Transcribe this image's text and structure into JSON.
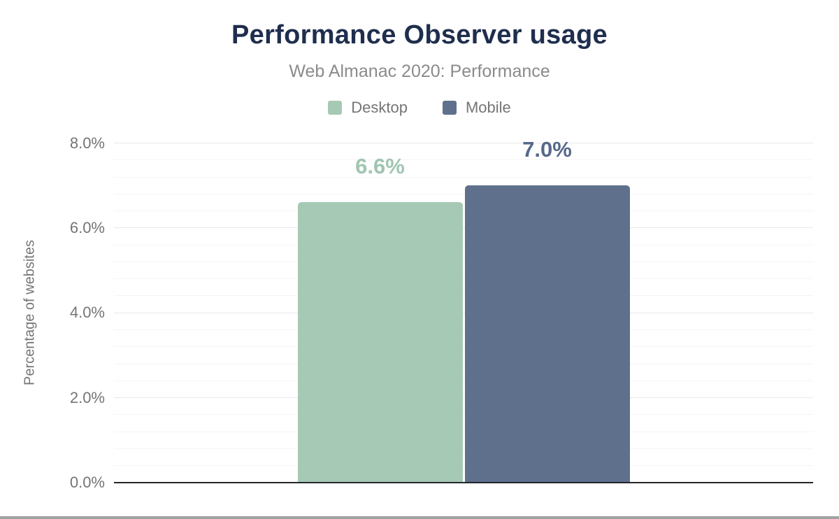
{
  "chart": {
    "title": "Performance Observer usage",
    "subtitle": "Web Almanac 2020: Performance",
    "ylabel": "Percentage of websites"
  },
  "chart_data": {
    "type": "bar",
    "title": "Performance Observer usage",
    "subtitle": "Web Almanac 2020: Performance",
    "categories": [
      "Performance Observer usage"
    ],
    "series": [
      {
        "name": "Desktop",
        "values": [
          6.6
        ],
        "value_label": "6.6%",
        "color": "#a6c9b6",
        "label_color": "#a0c5b1"
      },
      {
        "name": "Mobile",
        "values": [
          7.0
        ],
        "value_label": "7.0%",
        "color": "#5e708c",
        "label_color": "#57698a"
      }
    ],
    "xlabel": "",
    "ylabel": "Percentage of websites",
    "ylim": [
      0,
      8
    ],
    "major_step": 2,
    "minor_step": 0.4,
    "yticks": [
      {
        "value": 0,
        "label": "0.0%"
      },
      {
        "value": 2,
        "label": "2.0%"
      },
      {
        "value": 4,
        "label": "4.0%"
      },
      {
        "value": 6,
        "label": "6.0%"
      },
      {
        "value": 8,
        "label": "8.0%"
      }
    ],
    "grid": true,
    "legend_position": "top"
  },
  "colors": {
    "title": "#1f2e4d",
    "subtitle": "#8b8b8b",
    "axis_text": "#757575",
    "axis_line": "#24262a",
    "gridline_minor": "#f5f5f5",
    "gridline_major": "#e8e8e8",
    "bottom_divider": "#a2a2a2",
    "desktop": "#a6c9b6",
    "mobile": "#5e708c"
  }
}
